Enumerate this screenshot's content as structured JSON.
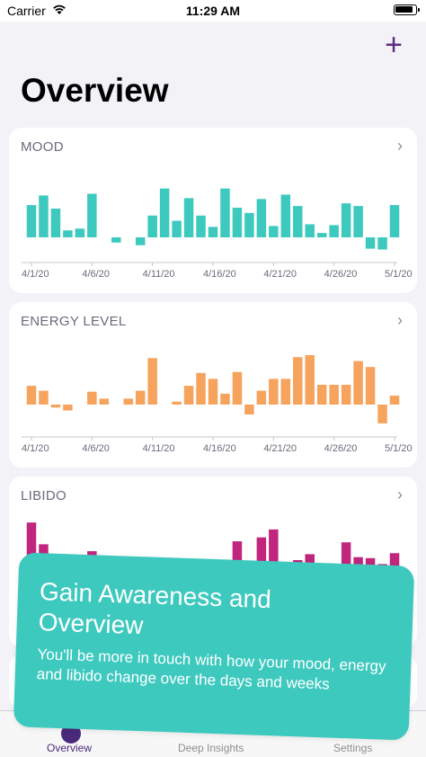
{
  "status_bar": {
    "carrier": "Carrier",
    "time": "11:29 AM"
  },
  "header": {
    "add_label": "+",
    "title": "Overview"
  },
  "colors": {
    "mood": "#3ec9bf",
    "energy": "#f6a35e",
    "libido": "#c0267e",
    "accent": "#5b2c83"
  },
  "cards": [
    {
      "key": "mood",
      "title": "MOOD",
      "chevron": "›",
      "x_labels": [
        "4/1/20",
        "4/6/20",
        "4/11/20",
        "4/16/20",
        "4/21/20",
        "4/26/20",
        "5/1/20"
      ],
      "values": [
        3.7,
        4.8,
        3.3,
        0.8,
        1.0,
        5.0,
        null,
        -0.6,
        null,
        -0.9,
        2.5,
        5.6,
        1.9,
        4.5,
        2.5,
        1.2,
        5.6,
        3.4,
        2.8,
        4.4,
        1.3,
        4.9,
        3.6,
        1.5,
        0.5,
        1.4,
        3.9,
        3.6,
        -1.3,
        -1.4,
        3.7
      ]
    },
    {
      "key": "energy",
      "title": "ENERGY LEVEL",
      "chevron": "›",
      "x_labels": [
        "4/1/20",
        "4/6/20",
        "4/11/20",
        "4/16/20",
        "4/21/20",
        "4/26/20",
        "5/1/20"
      ],
      "values": [
        1.9,
        1.4,
        -0.3,
        -0.6,
        null,
        1.3,
        0.6,
        null,
        0.6,
        1.4,
        4.7,
        null,
        0.3,
        1.9,
        3.2,
        2.6,
        1.1,
        3.3,
        -1.0,
        1.4,
        2.6,
        2.6,
        4.8,
        5.0,
        2.0,
        2.0,
        2.0,
        4.4,
        3.8,
        -1.9,
        0.9
      ]
    },
    {
      "key": "libido",
      "title": "LIBIDO",
      "chevron": "›",
      "x_labels": [
        "4/1/20",
        "4/6/20",
        "4/11/20",
        "4/16/20",
        "4/21/20",
        "4/26/20",
        "5/1/20"
      ],
      "values": [
        4.8,
        2.6,
        null,
        null,
        null,
        1.9,
        null,
        null,
        null,
        null,
        null,
        null,
        null,
        null,
        null,
        null,
        null,
        2.9,
        null,
        3.3,
        4.1,
        null,
        1.0,
        1.6,
        null,
        null,
        2.8,
        1.3,
        1.2,
        0.6,
        1.7
      ]
    }
  ],
  "promo": {
    "heading": "Gain Awareness and Overview",
    "body": "You'll be more in touch with how your mood, energy and libido change over the days and weeks"
  },
  "tabs": [
    {
      "label": "Overview",
      "active": true
    },
    {
      "label": "Deep Insights",
      "active": false
    },
    {
      "label": "Settings",
      "active": false
    }
  ]
}
